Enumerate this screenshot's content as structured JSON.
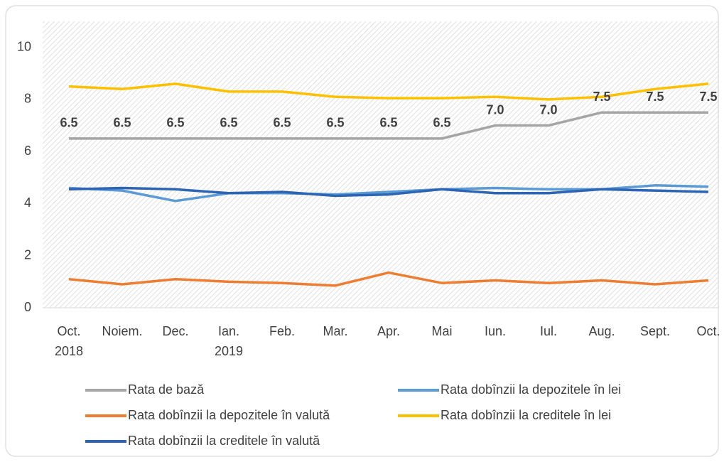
{
  "chart_data": {
    "type": "line",
    "categories": [
      "Oct.\n2018",
      "Noiem.",
      "Dec.",
      "Ian.\n2019",
      "Feb.",
      "Mar.",
      "Apr.",
      "Mai",
      "Iun.",
      "Iul.",
      "Aug.",
      "Sept.",
      "Oct."
    ],
    "ylim": [
      0,
      11
    ],
    "yticks": [
      0,
      2,
      4,
      6,
      8,
      10
    ],
    "series": [
      {
        "name": "Rata de bază",
        "color": "#a5a5a5",
        "values": [
          6.5,
          6.5,
          6.5,
          6.5,
          6.5,
          6.5,
          6.5,
          6.5,
          7.0,
          7.0,
          7.5,
          7.5,
          7.5
        ],
        "value_labels": [
          "6.5",
          "6.5",
          "6.5",
          "6.5",
          "6.5",
          "6.5",
          "6.5",
          "6.5",
          "7.0",
          "7.0",
          "7.5",
          "7.5",
          "7.5"
        ]
      },
      {
        "name": "Rata dobînzii la depozitele în lei",
        "color": "#5b9bd5",
        "values": [
          4.6,
          4.5,
          4.1,
          4.4,
          4.4,
          4.35,
          4.45,
          4.55,
          4.6,
          4.55,
          4.55,
          4.7,
          4.65
        ]
      },
      {
        "name": "Rata dobînzii la depozitele în valută",
        "color": "#ed7d31",
        "values": [
          1.1,
          0.9,
          1.1,
          1.0,
          0.95,
          0.85,
          1.35,
          0.95,
          1.05,
          0.95,
          1.05,
          0.9,
          1.05
        ]
      },
      {
        "name": "Rata dobînzii la creditele în lei",
        "color": "#ffc000",
        "values": [
          8.5,
          8.4,
          8.6,
          8.3,
          8.3,
          8.1,
          8.05,
          8.05,
          8.1,
          8.0,
          8.1,
          8.4,
          8.6
        ]
      },
      {
        "name": "Rata dobînzii la creditele în valută",
        "color": "#2e64b4",
        "values": [
          4.55,
          4.6,
          4.55,
          4.4,
          4.45,
          4.3,
          4.35,
          4.55,
          4.4,
          4.4,
          4.55,
          4.5,
          4.45
        ]
      }
    ]
  }
}
